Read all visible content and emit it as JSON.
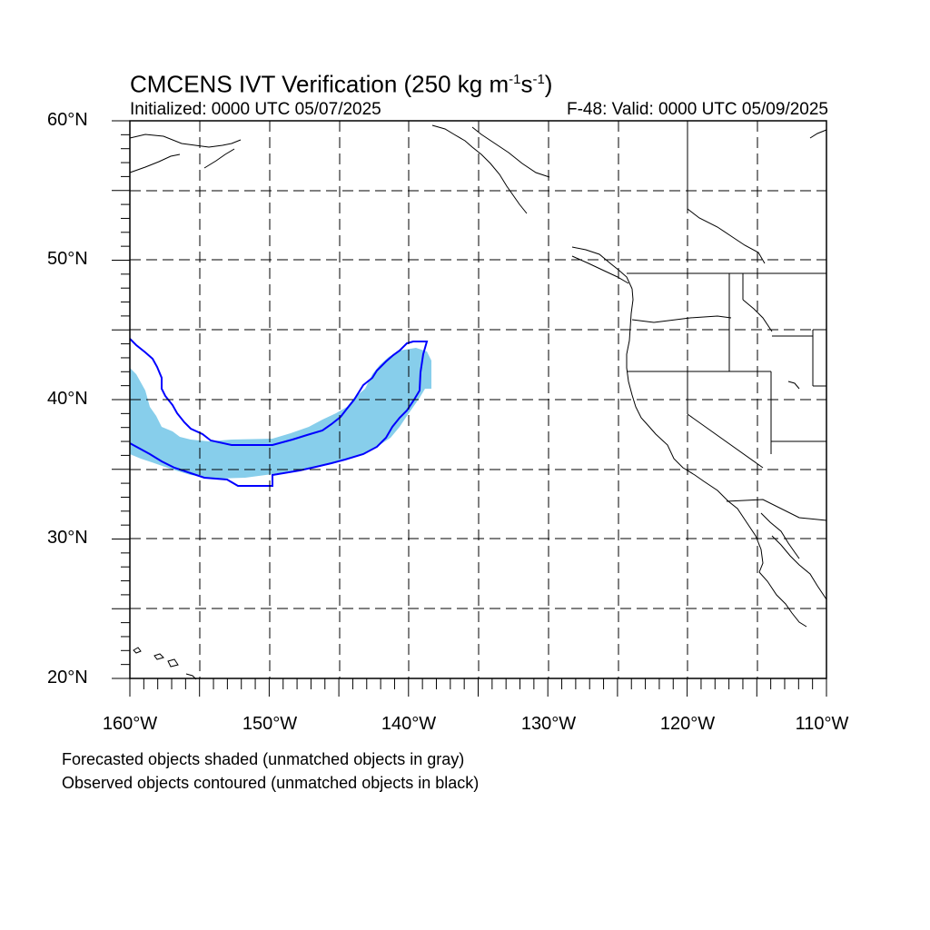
{
  "title": {
    "main": "CMCENS IVT Verification (250 kg m",
    "sup1": "-1",
    "mid": "s",
    "sup2": "-1",
    "end": ")"
  },
  "subtitle_left": "Initialized: 0000 UTC 05/07/2025",
  "subtitle_right": "F-48: Valid: 0000 UTC 05/09/2025",
  "lat_labels": [
    "60°N",
    "50°N",
    "40°N",
    "30°N",
    "20°N"
  ],
  "lon_labels": [
    "160°W",
    "150°W",
    "140°W",
    "130°W",
    "120°W",
    "110°W"
  ],
  "notes": [
    "Forecasted objects shaded (unmatched objects in gray)",
    "Observed objects contoured (unmatched objects in black)"
  ],
  "colors": {
    "forecast_fill": "#87ceeb",
    "observed_contour": "#0000ff",
    "coastline": "#000000",
    "grid": "#000000"
  },
  "map": {
    "lon_range": [
      -160,
      -110
    ],
    "lat_range": [
      20,
      60
    ],
    "projection": "cylindrical-equidistant",
    "grid_spacing_deg": 5,
    "grid_style": "dashed"
  }
}
